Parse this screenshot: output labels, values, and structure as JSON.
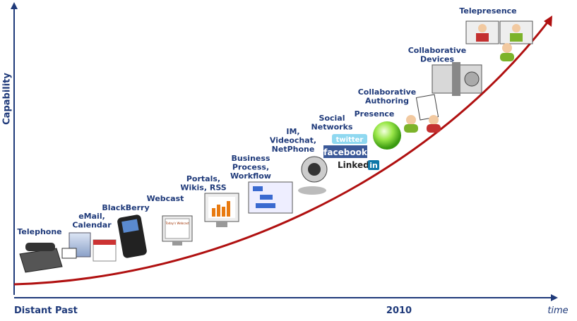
{
  "axes": {
    "y_label": "Capability",
    "x_start": "Distant Past",
    "x_mark": "2010",
    "x_label": "time"
  },
  "nodes": [
    {
      "lines": [
        "Telephone"
      ]
    },
    {
      "lines": [
        "eMail,",
        "Calendar"
      ]
    },
    {
      "lines": [
        "BlackBerry"
      ]
    },
    {
      "lines": [
        "Webcast"
      ]
    },
    {
      "lines": [
        "Portals,",
        "Wikis, RSS"
      ]
    },
    {
      "lines": [
        "Business",
        "Process,",
        "Workflow"
      ]
    },
    {
      "lines": [
        "IM,",
        "Videochat,",
        "NetPhone"
      ]
    },
    {
      "lines": [
        "Social",
        "Networks"
      ]
    },
    {
      "lines": [
        "Presence"
      ]
    },
    {
      "lines": [
        "Collaborative",
        "Authoring"
      ]
    },
    {
      "lines": [
        "Collaborative",
        "Devices"
      ]
    },
    {
      "lines": [
        "Telepresence"
      ]
    }
  ],
  "logos": {
    "twitter": "twitter",
    "facebook": "facebook",
    "linkedin": "Linked",
    "linkedin_in": "in"
  },
  "webcast_screen": "Today's Webcast"
}
